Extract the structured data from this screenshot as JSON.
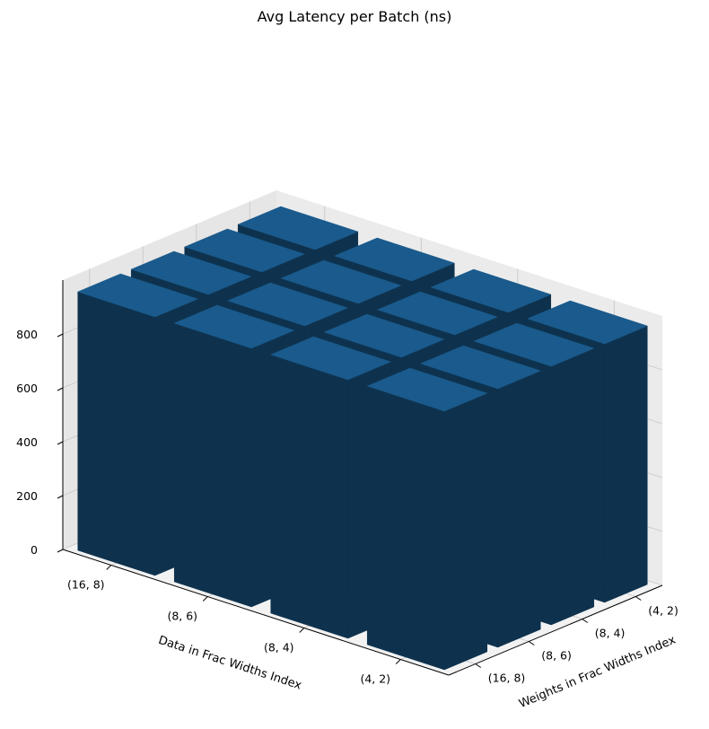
{
  "chart_data": {
    "type": "bar3d",
    "title": "Avg Latency per Batch (ns)",
    "xlabel": "Data in Frac Widths Index",
    "ylabel": "Weights in Frac Widths Index",
    "zlabel": "",
    "x_categories": [
      "(16, 8)",
      "(8, 6)",
      "(8, 4)",
      "(4, 2)"
    ],
    "y_categories": [
      "(16, 8)",
      "(8, 6)",
      "(8, 4)",
      "(4, 2)"
    ],
    "z_ticks": [
      "0",
      "200",
      "400",
      "600",
      "800"
    ],
    "zlim": [
      0,
      1000
    ],
    "grid": true,
    "colors": {
      "top": "#1a5a8c",
      "side": "#0e324e",
      "pane_floor": "#f2f2f2",
      "pane_wall": "#ebebeb",
      "grid": "#c8c8c8"
    },
    "values": [
      [
        960,
        960,
        960,
        960
      ],
      [
        960,
        960,
        960,
        960
      ],
      [
        960,
        960,
        960,
        960
      ],
      [
        960,
        960,
        960,
        960
      ]
    ]
  }
}
